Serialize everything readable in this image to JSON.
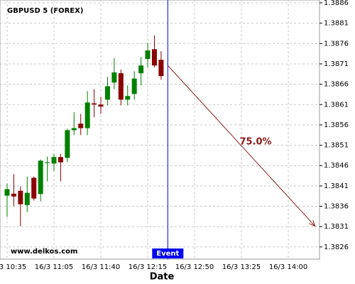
{
  "chart_data": {
    "type": "candlestick",
    "title": "GBPUSD 5 (FOREX)",
    "watermark": "www.delkos.com",
    "x_label": "Date",
    "categories": [
      "16/3 10:35",
      null,
      null,
      null,
      null,
      null,
      null,
      "16/3 11:05",
      null,
      null,
      null,
      null,
      null,
      null,
      "16/3 11:40",
      null,
      null,
      null,
      null,
      null,
      null,
      "16/3 12:15",
      null,
      null,
      null,
      null,
      null,
      null,
      "16/3 12:50",
      null,
      null,
      null,
      null,
      null,
      null,
      "16/3 13:25",
      null,
      null,
      null,
      null,
      null,
      null,
      "16/3 14:00",
      null,
      null,
      null,
      null
    ],
    "open": [
      1.38386,
      1.38391,
      1.38398,
      1.38363,
      1.3843,
      1.3839,
      1.38467,
      1.38465,
      1.38481,
      1.38479,
      1.38547,
      1.38563,
      1.38552,
      1.38613,
      1.3861,
      1.38622,
      1.38664,
      1.38687,
      1.38622,
      1.38636,
      1.38687,
      1.38722,
      1.38746,
      1.3872,
      null,
      null,
      null,
      null,
      null,
      null,
      null,
      null,
      null,
      null,
      null,
      null,
      null,
      null,
      null,
      null,
      null,
      null,
      null,
      null,
      null,
      null,
      null
    ],
    "high": [
      1.38416,
      1.38439,
      1.38409,
      1.38433,
      1.38433,
      1.38475,
      1.38482,
      1.38489,
      1.38489,
      1.38551,
      1.38591,
      1.38587,
      1.38643,
      1.38648,
      1.38629,
      1.38678,
      1.38724,
      1.38696,
      1.38657,
      1.38692,
      1.38727,
      1.38762,
      1.3878,
      1.38741,
      null,
      null,
      null,
      null,
      null,
      null,
      null,
      null,
      null,
      null,
      null,
      null,
      null,
      null,
      null,
      null,
      null,
      null,
      null,
      null,
      null,
      null,
      null
    ],
    "low": [
      1.38334,
      1.3836,
      1.38311,
      1.38346,
      1.38374,
      1.38372,
      1.38421,
      1.38447,
      1.38421,
      1.38468,
      1.38535,
      1.38535,
      1.38535,
      1.38579,
      1.38587,
      1.38608,
      1.38648,
      1.38608,
      1.38608,
      1.38622,
      1.38657,
      1.38701,
      1.38701,
      1.38671,
      null,
      null,
      null,
      null,
      null,
      null,
      null,
      null,
      null,
      null,
      null,
      null,
      null,
      null,
      null,
      null,
      null,
      null,
      null,
      null,
      null,
      null,
      null
    ],
    "close": [
      1.38402,
      1.38384,
      1.38365,
      1.38393,
      1.38379,
      1.38472,
      1.38468,
      1.38481,
      1.38468,
      1.38547,
      1.38552,
      1.38552,
      1.38615,
      1.3861,
      1.38605,
      1.38655,
      1.38689,
      1.38622,
      1.38631,
      1.38674,
      1.38706,
      1.38743,
      1.38706,
      1.3868,
      null,
      null,
      null,
      null,
      null,
      null,
      null,
      null,
      null,
      null,
      null,
      null,
      null,
      null,
      null,
      null,
      null,
      null,
      null,
      null,
      null,
      null,
      null
    ],
    "up_color": "#008000",
    "down_color": "#8b0000",
    "ylim": [
      1.3823,
      1.38867
    ],
    "yticks": [
      1.3826,
      1.3831,
      1.3836,
      1.3841,
      1.3846,
      1.3851,
      1.3856,
      1.3861,
      1.3866,
      1.3871,
      1.3876,
      1.3881,
      1.3886
    ],
    "grid": true,
    "event": {
      "label": "Event",
      "category": 24,
      "color": "#0000ee"
    },
    "prediction": {
      "label": "75.0%",
      "start_category": 24,
      "start": 1.38706,
      "end_category": 46,
      "end": 1.38311,
      "color": "#8b1a1a"
    }
  }
}
